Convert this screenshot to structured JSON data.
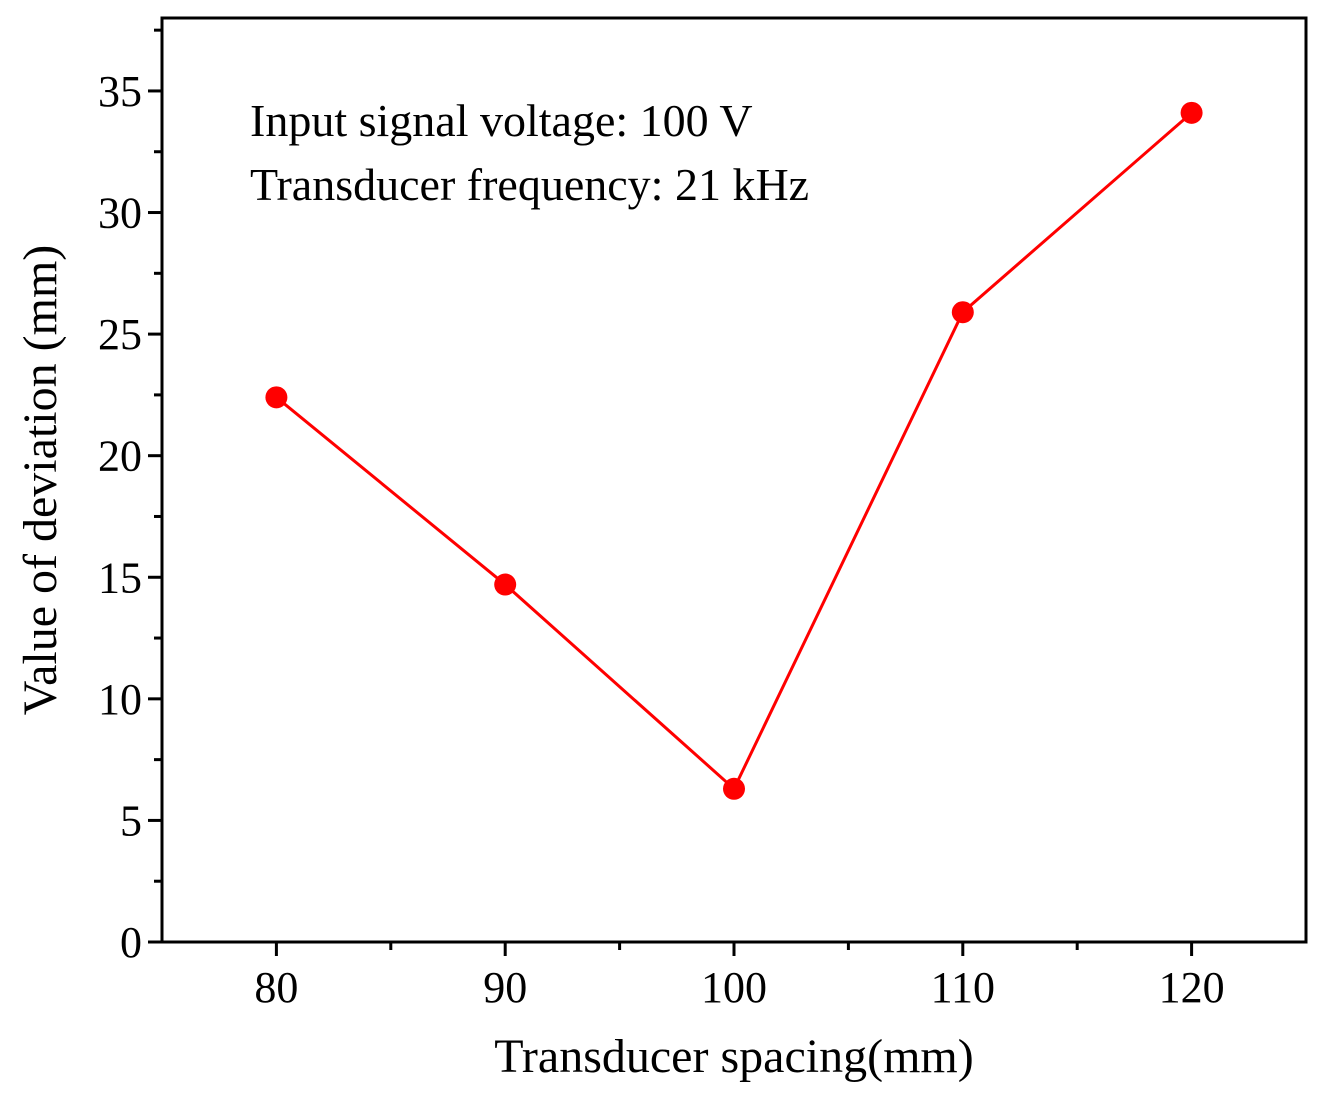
{
  "chart_data": {
    "type": "line",
    "title": "",
    "xlabel": "Transducer spacing(mm)",
    "ylabel": "Value of deviation (mm)",
    "x": [
      80,
      90,
      100,
      110,
      120
    ],
    "series": [
      {
        "name": "Value of deviation",
        "values": [
          22.4,
          14.7,
          6.3,
          25.9,
          34.1
        ],
        "color": "#ff0000"
      }
    ],
    "xlim": [
      75,
      125
    ],
    "ylim": [
      0,
      38
    ],
    "xticks": [
      80,
      90,
      100,
      110,
      120
    ],
    "xminor": [
      85,
      95,
      105,
      115
    ],
    "yticks": [
      0,
      5,
      10,
      15,
      20,
      25,
      30,
      35
    ],
    "yminor": [
      2.5,
      7.5,
      12.5,
      17.5,
      22.5,
      27.5,
      32.5,
      37.5
    ],
    "annotations": [
      "Input signal voltage: 100 V",
      "Transducer frequency: 21 kHz"
    ],
    "grid": false
  }
}
